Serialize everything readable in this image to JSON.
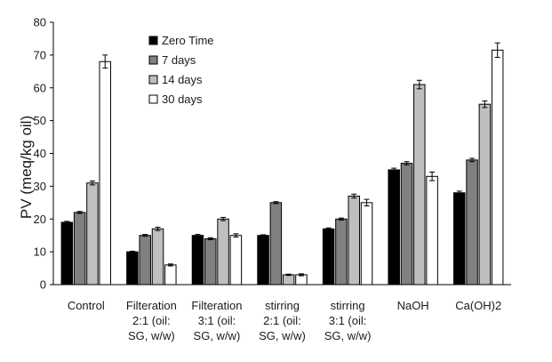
{
  "chart_data": {
    "type": "bar",
    "ylabel": "PV (meq/kg oil)",
    "xlabel": "",
    "ylim": [
      0,
      80
    ],
    "yticks": [
      0,
      10,
      20,
      30,
      40,
      50,
      60,
      70,
      80
    ],
    "grid": false,
    "legend_position": "top-left",
    "categories": [
      [
        "Control"
      ],
      [
        "Filteration",
        "2:1 (oil:",
        "SG, w/w)"
      ],
      [
        "Filteration",
        "3:1 (oil:",
        "SG, w/w)"
      ],
      [
        "stirring",
        "2:1 (oil:",
        "SG, w/w)"
      ],
      [
        "stirring",
        "3:1 (oil:",
        "SG, w/w)"
      ],
      [
        "NaOH"
      ],
      [
        "Ca(OH)2"
      ]
    ],
    "series": [
      {
        "name": "Zero Time",
        "color": "#000000",
        "values": [
          19,
          10,
          15,
          15,
          17,
          35,
          28
        ],
        "errors": [
          0.3,
          0.2,
          0.3,
          0.2,
          0.3,
          0.5,
          0.5
        ]
      },
      {
        "name": "7 days",
        "color": "#808080",
        "values": [
          22,
          15,
          14,
          25,
          20,
          37,
          38
        ],
        "errors": [
          0.3,
          0.3,
          0.3,
          0.3,
          0.3,
          0.5,
          0.5
        ]
      },
      {
        "name": "14 days",
        "color": "#bfbfbf",
        "values": [
          31,
          17,
          20,
          3,
          27,
          61,
          55
        ],
        "errors": [
          0.6,
          0.5,
          0.5,
          0.2,
          0.6,
          1.3,
          1.0
        ]
      },
      {
        "name": "30 days",
        "color": "#ffffff",
        "values": [
          68,
          6,
          15,
          3,
          25,
          33,
          71.5
        ],
        "errors": [
          2.0,
          0.3,
          0.5,
          0.3,
          1.0,
          1.3,
          2.2
        ]
      }
    ]
  }
}
